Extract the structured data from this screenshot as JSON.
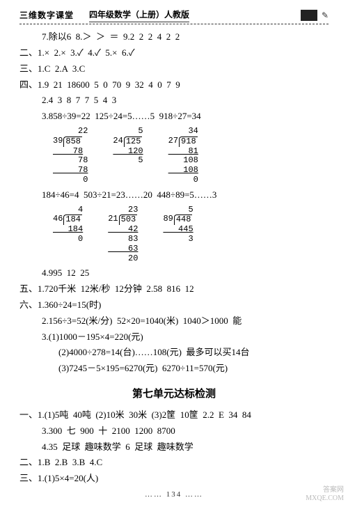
{
  "header": {
    "left": "三维数字课堂",
    "mid": "四年级数学（上册）人教版",
    "feather": "✎"
  },
  "top": {
    "l1": "7.除以6  8.＞  ＞  ＝  9.2  2  2  4  2  2",
    "l2": "二、1.×  2.×  3.✓  4.✓  5.×  6.✓",
    "l3": "三、1.C  2.A  3.C",
    "l4": "四、1.9  21  18600  5  0  70  9  32  4  0  7  9",
    "l5": "2.4  3  8  7  7  5  4  3",
    "l6": "3.858÷39=22  125÷24=5……5  918÷27=34"
  },
  "div1": [
    {
      "q": "22",
      "dv": "39",
      "dd": "858",
      "w": [
        "78",
        "  78",
        "  78",
        "   0"
      ]
    },
    {
      "q": " 5",
      "dv": "24",
      "dd": "125",
      "w": [
        "120",
        "  5"
      ]
    },
    {
      "q": "34",
      "dv": "27",
      "dd": "918",
      "w": [
        "81",
        "108",
        "108",
        "  0"
      ]
    }
  ],
  "midline": "184÷46=4  503÷21=23……20  448÷89=5……3",
  "div2": [
    {
      "q": " 4",
      "dv": "46",
      "dd": "184",
      "w": [
        "184",
        "  0"
      ]
    },
    {
      "q": "23",
      "dv": "21",
      "dd": "503",
      "w": [
        "42",
        " 83",
        " 63",
        " 20"
      ]
    },
    {
      "q": " 5",
      "dv": "89",
      "dd": "448",
      "w": [
        "445",
        "  3"
      ]
    }
  ],
  "after": {
    "l1": "4.995  12  25",
    "l2": "五、1.720千米  12米/秒  12分钟  2.58  816  12",
    "l3": "六、1.360÷24=15(时)",
    "l4": "2.156÷3=52(米/分)  52×20=1040(米)  1040＞1000  能",
    "l5": "3.(1)1000－195×4=220(元)",
    "l6": "(2)4000÷278=14(台)……108(元)  最多可以买14台",
    "l7": "(3)7245－5×195=6270(元)  6270÷11=570(元)"
  },
  "section": "第七单元达标检测",
  "sec": {
    "l1": "一、1.(1)5吨  40吨  (2)10米  30米  (3)2筐  10筐  2.2  E  34  84",
    "l2": "3.300  七  900  十  2100  1200  8700",
    "l3": "4.35  足球  趣味数学  6  足球  趣味数学",
    "l4": "二、1.B  2.B  3.B  4.C",
    "l5": "三、1.(1)5×4=20(人)"
  },
  "pageno": "…… 134 ……",
  "wm": {
    "a": "答案网",
    "b": "MXQE.COM"
  }
}
